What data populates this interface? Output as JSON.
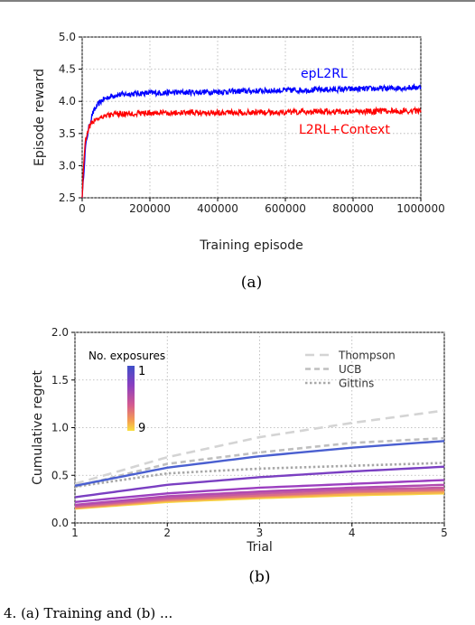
{
  "top_rule": "",
  "chart_data": [
    {
      "type": "line",
      "title": "",
      "xlabel": "Training episode",
      "ylabel": "Episode reward",
      "xlim": [
        0,
        1000000
      ],
      "ylim": [
        2.5,
        5.0
      ],
      "xticks": [
        0,
        200000,
        400000,
        600000,
        800000,
        1000000
      ],
      "xtick_labels": [
        "0",
        "200000",
        "400000",
        "600000",
        "800000",
        "1000000"
      ],
      "yticks": [
        2.5,
        3.0,
        3.5,
        4.0,
        4.5,
        5.0
      ],
      "ytick_labels": [
        "2.5",
        "3.0",
        "3.5",
        "4.0",
        "4.5",
        "5.0"
      ],
      "grid": true,
      "series": [
        {
          "name": "epL2RL",
          "color": "#0000ff",
          "x": [
            0,
            5000,
            10000,
            20000,
            30000,
            40000,
            50000,
            60000,
            80000,
            100000,
            150000,
            200000,
            300000,
            400000,
            500000,
            600000,
            700000,
            800000,
            900000,
            1000000
          ],
          "y": [
            2.5,
            2.9,
            3.3,
            3.6,
            3.8,
            3.9,
            3.97,
            4.02,
            4.07,
            4.1,
            4.12,
            4.13,
            4.14,
            4.15,
            4.16,
            4.17,
            4.18,
            4.19,
            4.2,
            4.22
          ]
        },
        {
          "name": "L2RL+Context",
          "color": "#ff0000",
          "x": [
            0,
            5000,
            10000,
            20000,
            30000,
            40000,
            50000,
            60000,
            80000,
            100000,
            150000,
            200000,
            300000,
            400000,
            500000,
            600000,
            700000,
            800000,
            900000,
            1000000
          ],
          "y": [
            2.5,
            3.1,
            3.4,
            3.6,
            3.68,
            3.72,
            3.75,
            3.77,
            3.79,
            3.8,
            3.81,
            3.82,
            3.82,
            3.83,
            3.83,
            3.83,
            3.84,
            3.84,
            3.85,
            3.85
          ]
        }
      ],
      "caption": "(a)"
    },
    {
      "type": "line",
      "title": "",
      "xlabel": "Trial",
      "ylabel": "Cumulative regret",
      "xlim": [
        1,
        5
      ],
      "ylim": [
        0.0,
        2.0
      ],
      "xticks": [
        1,
        2,
        3,
        4,
        5
      ],
      "xtick_labels": [
        "1",
        "2",
        "3",
        "4",
        "5"
      ],
      "yticks": [
        0.0,
        0.5,
        1.0,
        1.5,
        2.0
      ],
      "ytick_labels": [
        "0.0",
        "0.5",
        "1.0",
        "1.5",
        "2.0"
      ],
      "grid": true,
      "colorbar": {
        "label": "No. exposures",
        "min_label": "1",
        "max_label": "9"
      },
      "x": [
        1,
        2,
        3,
        4,
        5
      ],
      "exposure_series": [
        {
          "exposures": 1,
          "color": "#4a5fd0",
          "y": [
            0.39,
            0.58,
            0.7,
            0.79,
            0.86
          ]
        },
        {
          "exposures": 2,
          "color": "#7a3fc2",
          "y": [
            0.27,
            0.4,
            0.48,
            0.54,
            0.59
          ]
        },
        {
          "exposures": 3,
          "color": "#9b3fc0",
          "y": [
            0.22,
            0.31,
            0.37,
            0.41,
            0.45
          ]
        },
        {
          "exposures": 4,
          "color": "#b14ab0",
          "y": [
            0.19,
            0.28,
            0.33,
            0.37,
            0.4
          ]
        },
        {
          "exposures": 5,
          "color": "#c45aa0",
          "y": [
            0.18,
            0.26,
            0.31,
            0.35,
            0.37
          ]
        },
        {
          "exposures": 6,
          "color": "#d96e88",
          "y": [
            0.17,
            0.25,
            0.29,
            0.33,
            0.35
          ]
        },
        {
          "exposures": 7,
          "color": "#ea8a6a",
          "y": [
            0.16,
            0.24,
            0.28,
            0.32,
            0.34
          ]
        },
        {
          "exposures": 8,
          "color": "#f5b04e",
          "y": [
            0.155,
            0.23,
            0.27,
            0.3,
            0.32
          ]
        },
        {
          "exposures": 9,
          "color": "#f8d842",
          "y": [
            0.15,
            0.22,
            0.26,
            0.29,
            0.31
          ]
        }
      ],
      "baselines": [
        {
          "name": "Thompson",
          "color": "#d4d4d4",
          "dash": "long",
          "y": [
            0.41,
            0.69,
            0.9,
            1.05,
            1.18
          ]
        },
        {
          "name": "UCB",
          "color": "#bfbfbf",
          "dash": "medium",
          "y": [
            0.38,
            0.62,
            0.74,
            0.84,
            0.89
          ]
        },
        {
          "name": "Gittins",
          "color": "#a8a8a8",
          "dash": "dotted",
          "y": [
            0.38,
            0.52,
            0.57,
            0.6,
            0.63
          ]
        }
      ],
      "caption": "(b)"
    }
  ],
  "bottom_caption_fragment": "4. (a) Training and (b) ..."
}
